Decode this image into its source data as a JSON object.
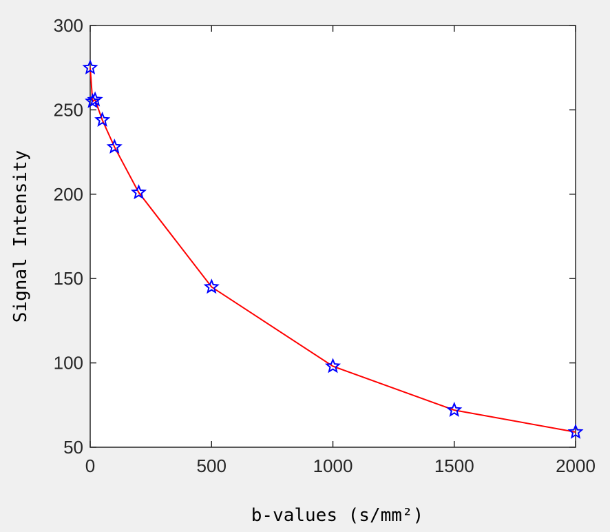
{
  "chart_data": {
    "type": "line",
    "title": "",
    "xlabel": "b-values (s/mm²)",
    "ylabel": "Signal Intensity",
    "xlim": [
      0,
      2000
    ],
    "ylim": [
      50,
      300
    ],
    "xticks": [
      "0",
      "500",
      "1000",
      "1500",
      "2000"
    ],
    "yticks": [
      "50",
      "100",
      "150",
      "200",
      "250",
      "300"
    ],
    "grid": false,
    "legend": "none",
    "series": [
      {
        "marker": "star",
        "line_color": "#ff0000",
        "marker_color": "#0000ff",
        "x": [
          0,
          10,
          20,
          50,
          100,
          200,
          500,
          1000,
          1500,
          2000
        ],
        "y": [
          275,
          255,
          256,
          244,
          228,
          201,
          145,
          98,
          72,
          59
        ]
      }
    ]
  }
}
